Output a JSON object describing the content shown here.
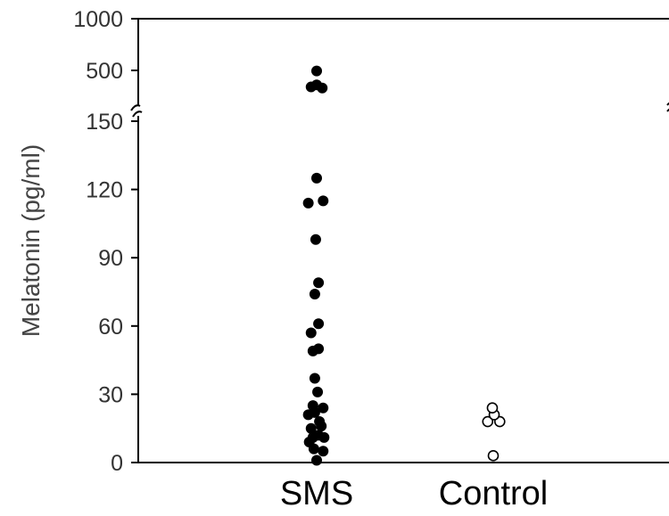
{
  "chart_data": {
    "type": "scatter",
    "title": "",
    "xlabel": "",
    "ylabel": "Melatonin (pg/ml)",
    "categories": [
      "SMS",
      "Control"
    ],
    "y_axis": {
      "broken": true,
      "lower_segment": {
        "range": [
          0,
          150
        ],
        "ticks": [
          0,
          30,
          60,
          90,
          120,
          150
        ]
      },
      "upper_segment": {
        "range": [
          150,
          1000
        ],
        "ticks": [
          500,
          1000
        ]
      }
    },
    "tick_labels": [
      "0",
      "30",
      "60",
      "90",
      "120",
      "150",
      "500",
      "1000"
    ],
    "series": [
      {
        "category": "SMS",
        "marker": "filled-circle",
        "color": "#000000",
        "points": [
          {
            "x": 0,
            "y": 1
          },
          {
            "x": -0.15,
            "y": 6
          },
          {
            "x": 0.35,
            "y": 5
          },
          {
            "x": -0.4,
            "y": 9
          },
          {
            "x": -0.2,
            "y": 11
          },
          {
            "x": 0.1,
            "y": 12
          },
          {
            "x": 0.4,
            "y": 11
          },
          {
            "x": -0.3,
            "y": 15
          },
          {
            "x": 0.25,
            "y": 16
          },
          {
            "x": 0.15,
            "y": 18
          },
          {
            "x": -0.45,
            "y": 21
          },
          {
            "x": -0.1,
            "y": 22
          },
          {
            "x": 0.35,
            "y": 24
          },
          {
            "x": -0.2,
            "y": 25
          },
          {
            "x": 0.05,
            "y": 31
          },
          {
            "x": -0.1,
            "y": 37
          },
          {
            "x": -0.2,
            "y": 49
          },
          {
            "x": 0.1,
            "y": 50
          },
          {
            "x": -0.3,
            "y": 57
          },
          {
            "x": 0.1,
            "y": 61
          },
          {
            "x": -0.1,
            "y": 74
          },
          {
            "x": 0.1,
            "y": 79
          },
          {
            "x": -0.05,
            "y": 98
          },
          {
            "x": -0.45,
            "y": 114
          },
          {
            "x": 0.35,
            "y": 115
          },
          {
            "x": 0,
            "y": 125
          },
          {
            "x": -0.3,
            "y": 340
          },
          {
            "x": 0,
            "y": 360
          },
          {
            "x": 0.3,
            "y": 330
          },
          {
            "x": 0,
            "y": 495
          }
        ]
      },
      {
        "category": "Control",
        "marker": "open-circle",
        "color": "#000000",
        "points": [
          {
            "x": 0,
            "y": 3
          },
          {
            "x": -0.3,
            "y": 18
          },
          {
            "x": 0.35,
            "y": 18
          },
          {
            "x": 0.05,
            "y": 21
          },
          {
            "x": -0.05,
            "y": 24
          }
        ]
      }
    ]
  }
}
